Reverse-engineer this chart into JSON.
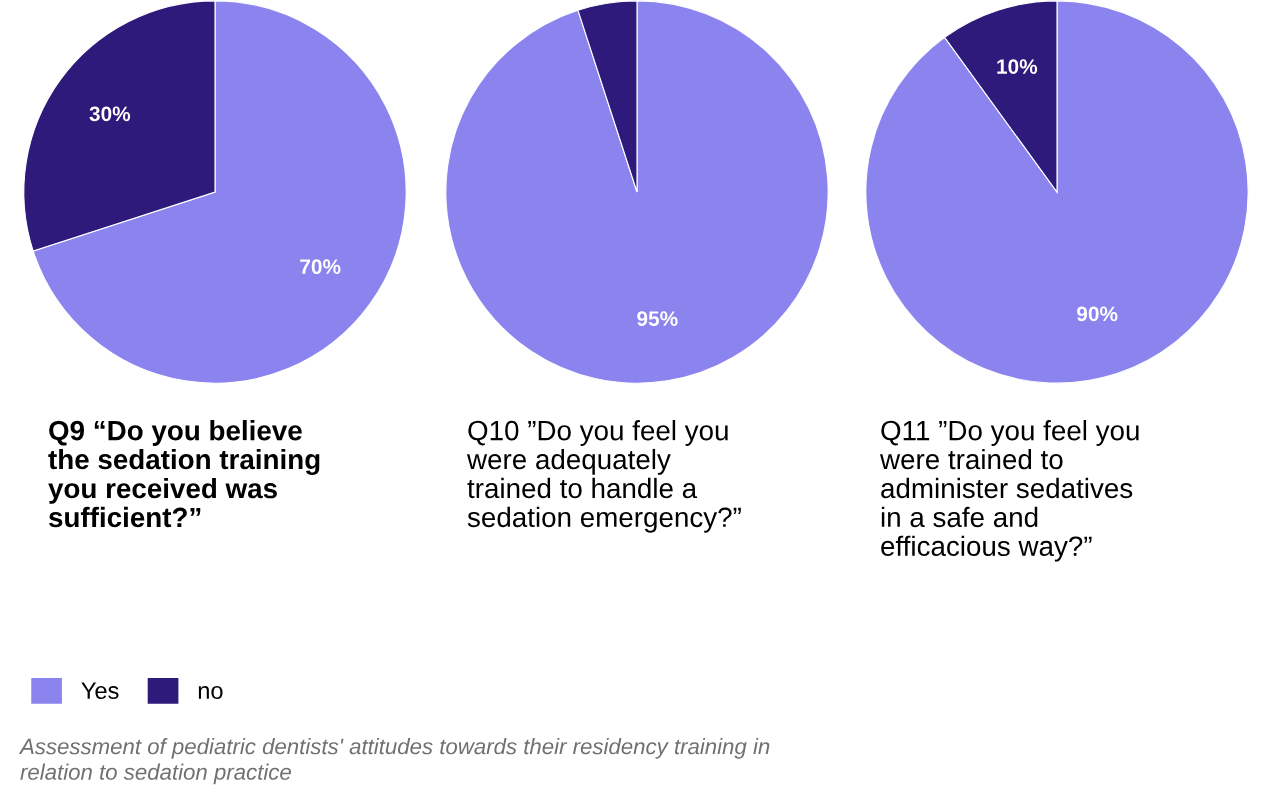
{
  "chart_data": [
    {
      "type": "pie",
      "title": "Q9 “Do you believe\nthe sedation training\nyou received was\nsufficient?”",
      "categories": [
        "Yes",
        "no"
      ],
      "values": [
        70,
        30
      ],
      "colors": [
        "#8c84ee",
        "#2e1a7a"
      ],
      "value_labels": [
        "70%",
        "30%"
      ],
      "legend": "bottom",
      "annotations": [
        "Assessment of pediatric dentists' attitudes towards their residency training in\nrelation to sedation practice"
      ]
    },
    {
      "type": "pie",
      "title": "Q10 ”Do you feel you\nwere adequately\ntrained to handle a\nsedation emergency?”",
      "categories": [
        null,
        null
      ],
      "values": [
        95,
        5
      ],
      "colors": [
        "#8c84ee",
        "#2e1a7a"
      ],
      "value_labels": [
        "95%",
        null
      ]
    },
    {
      "type": "pie",
      "title": "Q11 ”Do you feel you\nwere trained to\nadminister sedatives\nin a safe and\nefficacious way?”",
      "categories": [
        null,
        null
      ],
      "values": [
        90,
        10
      ],
      "colors": [
        "#8c84ee",
        "#2e1a7a"
      ],
      "value_labels": [
        "90%",
        "10%"
      ]
    }
  ]
}
